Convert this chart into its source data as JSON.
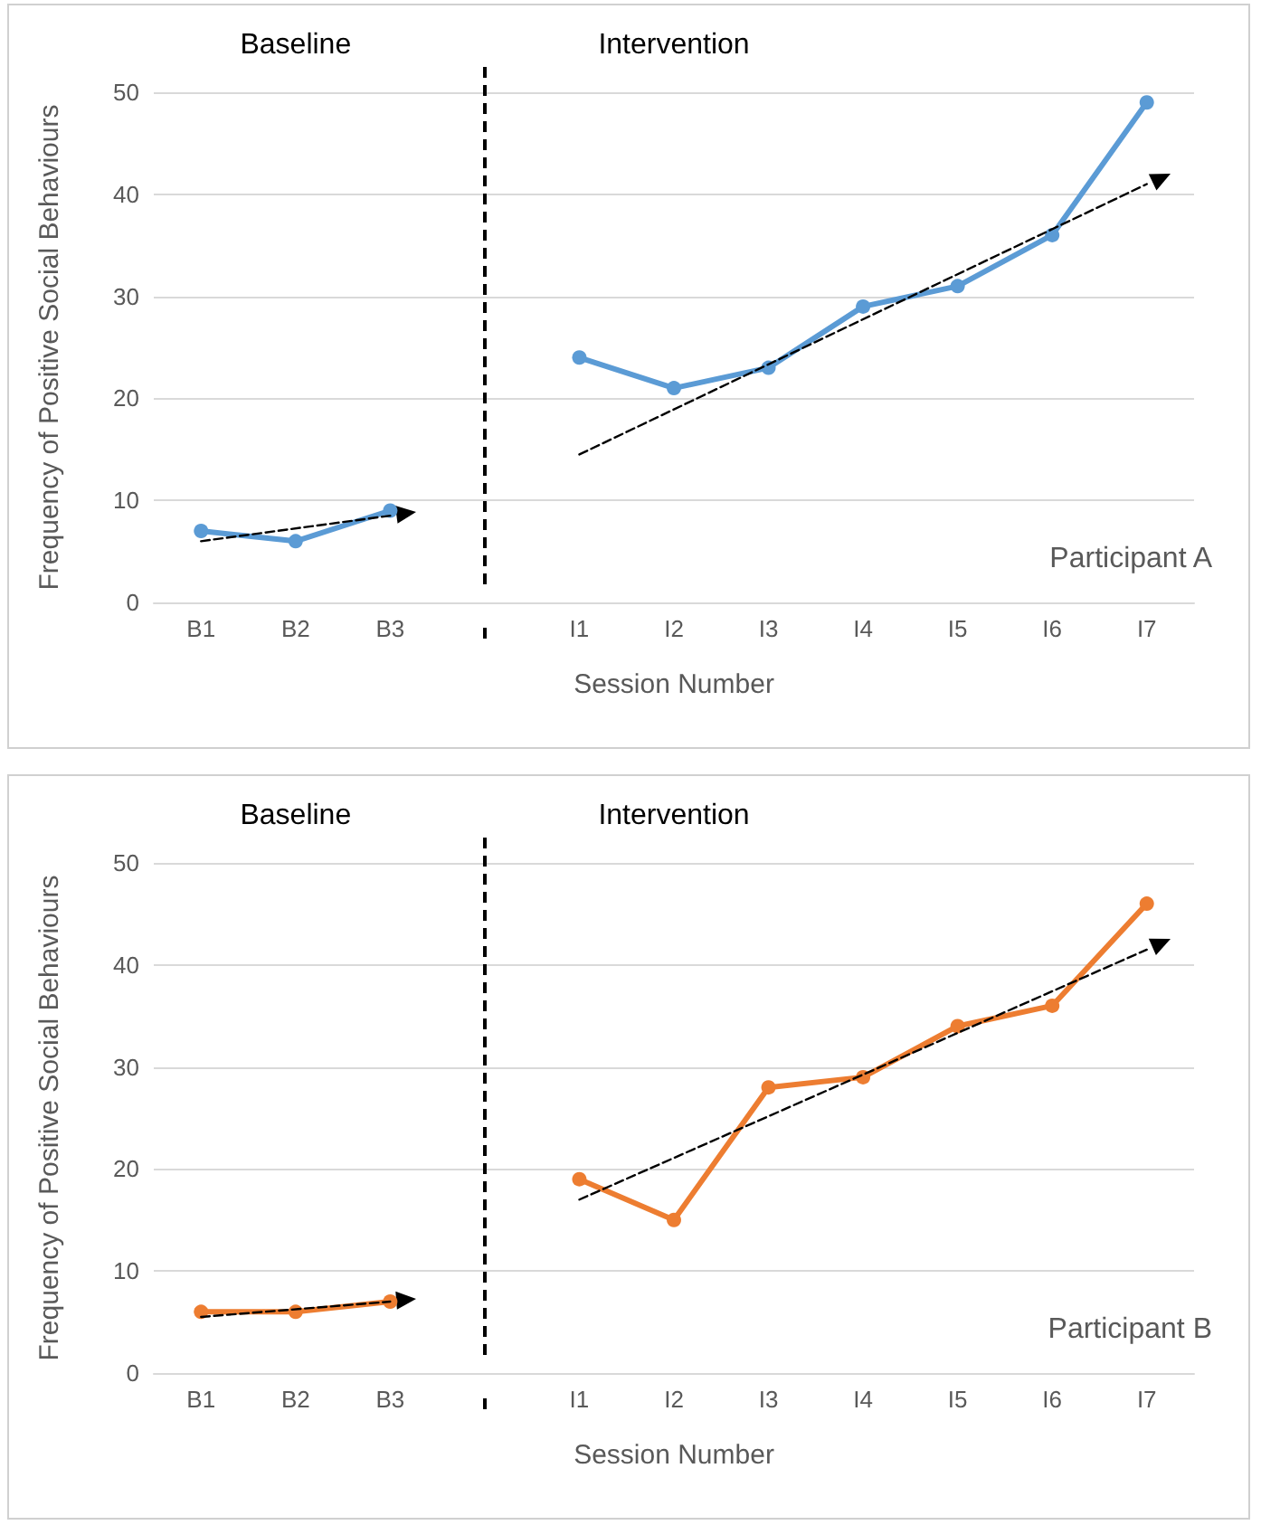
{
  "chart_data": [
    {
      "type": "line",
      "categories": [
        "B1",
        "B2",
        "B3",
        null,
        "I1",
        "I2",
        "I3",
        "I4",
        "I5",
        "I6",
        "I7"
      ],
      "series": [
        {
          "color": "#5b9bd5",
          "values": [
            7,
            6,
            9,
            null,
            24,
            21,
            23,
            29,
            31,
            36,
            49
          ]
        },
        {
          "type": "line",
          "x": [
            "B1",
            "B3"
          ],
          "values": [
            6,
            8.5
          ],
          "color": "#000000",
          "line_style": "dashed",
          "marker": "none"
        },
        {
          "type": "line",
          "x": [
            "I1",
            "I7"
          ],
          "values": [
            14.5,
            41
          ],
          "color": "#000000",
          "line_style": "dashed",
          "marker": "none"
        }
      ],
      "ylabel": "Frequency of Positive Social Behaviours",
      "xlabel": "Session Number",
      "ylim": [
        0,
        50
      ],
      "yticks": [
        0,
        10,
        20,
        30,
        40,
        50
      ],
      "grid": "y",
      "marker": "circle",
      "line_style": "solid",
      "annotations": [
        "Baseline",
        "Intervention",
        "Participant A"
      ]
    },
    {
      "type": "line",
      "categories": [
        "B1",
        "B2",
        "B3",
        null,
        "I1",
        "I2",
        "I3",
        "I4",
        "I5",
        "I6",
        "I7"
      ],
      "series": [
        {
          "color": "#ed7d31",
          "values": [
            6,
            6,
            7,
            null,
            19,
            15,
            28,
            29,
            34,
            36,
            46
          ]
        },
        {
          "type": "line",
          "x": [
            "B1",
            "B3"
          ],
          "values": [
            5.5,
            7
          ],
          "color": "#000000",
          "line_style": "dashed",
          "marker": "none"
        },
        {
          "type": "line",
          "x": [
            "I1",
            "I7"
          ],
          "values": [
            17,
            41.5
          ],
          "color": "#000000",
          "line_style": "dashed",
          "marker": "none"
        }
      ],
      "ylabel": "Frequency of Positive Social Behaviours",
      "xlabel": "Session Number",
      "ylim": [
        0,
        50
      ],
      "yticks": [
        0,
        10,
        20,
        30,
        40,
        50
      ],
      "grid": "y",
      "marker": "circle",
      "line_style": "solid",
      "annotations": [
        "Baseline",
        "Intervention",
        "Participant B"
      ]
    }
  ]
}
